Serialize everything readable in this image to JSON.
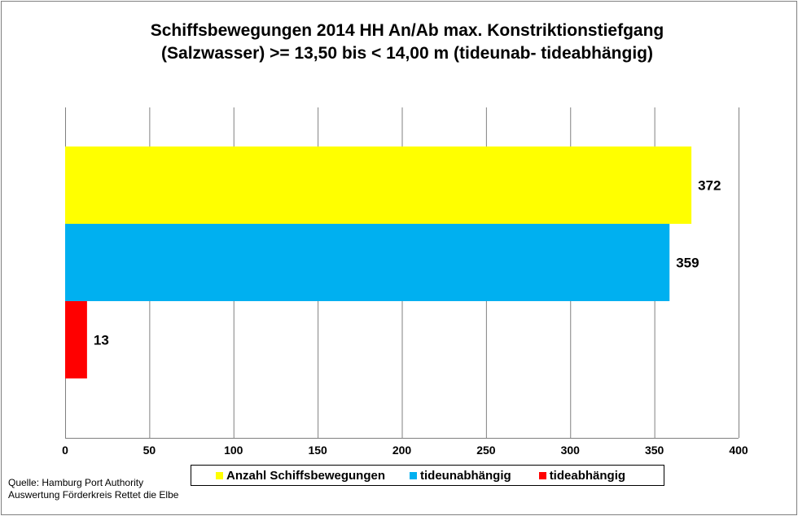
{
  "chart_data": {
    "type": "bar",
    "orientation": "horizontal",
    "title": [
      "Schiffsbewegungen 2014 HH An/Ab max. Konstriktionstiefgang",
      "(Salzwasser) >=  13,50 bis < 14,00 m (tideunab- tideabhängig)"
    ],
    "series": [
      {
        "name": "Anzahl Schiffsbewegungen",
        "value": 372,
        "color": "#ffff00"
      },
      {
        "name": "tideunabhängig",
        "value": 359,
        "color": "#00b0f0"
      },
      {
        "name": "tideabhängig",
        "value": 13,
        "color": "#ff0000"
      }
    ],
    "xlim": [
      0,
      400
    ],
    "xticks": [
      0,
      50,
      100,
      150,
      200,
      250,
      300,
      350,
      400
    ],
    "grid": true,
    "legend_position": "bottom"
  },
  "source": [
    "Quelle: Hamburg Port Authority",
    "Auswertung Förderkreis Rettet  die Elbe"
  ]
}
